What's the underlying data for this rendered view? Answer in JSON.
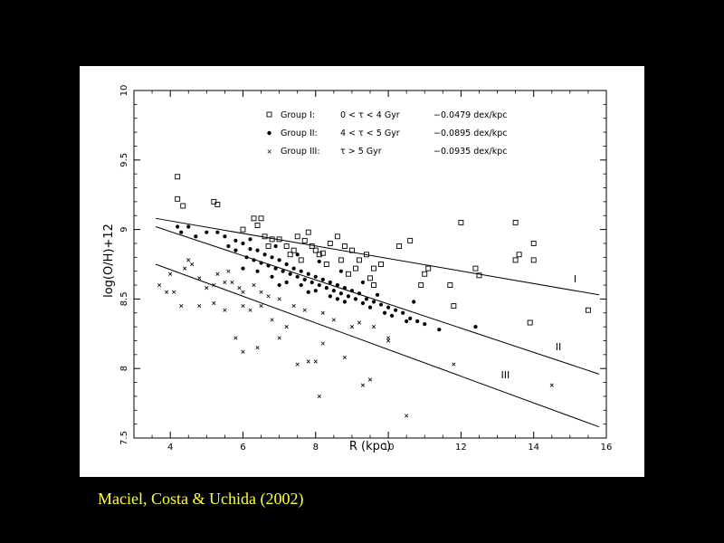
{
  "caption": "Maciel, Costa & Uchida (2002)",
  "colors": {
    "background": "#000000",
    "panel": "#ffffff",
    "ink": "#000000",
    "caption": "#ffff33"
  },
  "chart_data": {
    "type": "scatter",
    "xlabel": "R (kpc)",
    "ylabel": "log(O/H)+12",
    "xlim": [
      3,
      16
    ],
    "ylim": [
      7.5,
      10
    ],
    "xticks": [
      4,
      6,
      8,
      10,
      12,
      14,
      16
    ],
    "yticks": [
      7.5,
      8,
      8.5,
      9,
      9.5,
      10
    ],
    "xtick_labels": [
      "4",
      "6",
      "8",
      "10",
      "12",
      "14",
      "16"
    ],
    "ytick_labels": [
      "7.5",
      "8",
      "8.5",
      "9",
      "9.5",
      "10"
    ],
    "legend_position": "top",
    "legend": [
      {
        "marker": "square",
        "label": "Group I:",
        "age": "0 < τ < 4 Gyr",
        "gradient": "−0.0479 dex/kpc"
      },
      {
        "marker": "dot",
        "label": "Group II:",
        "age": "4 < τ < 5 Gyr",
        "gradient": "−0.0895 dex/kpc"
      },
      {
        "marker": "cross",
        "label": "Group III:",
        "age": "τ > 5 Gyr",
        "gradient": "−0.0935 dex/kpc"
      }
    ],
    "fit_lines": [
      {
        "label": "I",
        "x": [
          3.6,
          15.8
        ],
        "y": [
          9.08,
          8.53
        ],
        "label_x": 15.1,
        "label_y": 8.62
      },
      {
        "label": "II",
        "x": [
          3.6,
          15.8
        ],
        "y": [
          9.02,
          7.96
        ],
        "label_x": 14.6,
        "label_y": 8.13
      },
      {
        "label": "III",
        "x": [
          3.6,
          15.8
        ],
        "y": [
          8.75,
          7.58
        ],
        "label_x": 13.1,
        "label_y": 7.93
      }
    ],
    "series": [
      {
        "name": "Group I",
        "marker": "square",
        "points": [
          [
            4.2,
            9.38
          ],
          [
            4.2,
            9.22
          ],
          [
            4.35,
            9.17
          ],
          [
            5.2,
            9.2
          ],
          [
            5.3,
            9.18
          ],
          [
            6.0,
            9.0
          ],
          [
            6.3,
            9.08
          ],
          [
            6.5,
            9.08
          ],
          [
            6.4,
            9.03
          ],
          [
            6.6,
            8.95
          ],
          [
            6.8,
            8.93
          ],
          [
            7.0,
            8.93
          ],
          [
            7.2,
            8.88
          ],
          [
            7.4,
            8.85
          ],
          [
            7.5,
            8.95
          ],
          [
            7.7,
            8.92
          ],
          [
            7.8,
            8.98
          ],
          [
            7.9,
            8.88
          ],
          [
            8.0,
            8.85
          ],
          [
            8.1,
            8.82
          ],
          [
            8.2,
            8.83
          ],
          [
            8.4,
            8.9
          ],
          [
            8.6,
            8.95
          ],
          [
            8.8,
            8.88
          ],
          [
            9.0,
            8.85
          ],
          [
            9.2,
            8.78
          ],
          [
            9.4,
            8.82
          ],
          [
            9.6,
            8.72
          ],
          [
            9.8,
            8.75
          ],
          [
            10.3,
            8.88
          ],
          [
            10.6,
            8.92
          ],
          [
            10.9,
            8.6
          ],
          [
            11.1,
            8.72
          ],
          [
            11.0,
            8.68
          ],
          [
            11.7,
            8.6
          ],
          [
            11.8,
            8.45
          ],
          [
            12.0,
            9.05
          ],
          [
            12.4,
            8.72
          ],
          [
            12.5,
            8.67
          ],
          [
            13.5,
            9.05
          ],
          [
            13.6,
            8.82
          ],
          [
            13.5,
            8.78
          ],
          [
            14.0,
            8.9
          ],
          [
            14.0,
            8.78
          ],
          [
            15.5,
            8.42
          ],
          [
            13.9,
            8.33
          ],
          [
            6.7,
            8.88
          ],
          [
            7.3,
            8.82
          ],
          [
            8.3,
            8.75
          ],
          [
            8.7,
            8.78
          ],
          [
            9.1,
            8.72
          ],
          [
            9.5,
            8.65
          ],
          [
            8.9,
            8.68
          ],
          [
            9.6,
            8.6
          ],
          [
            7.6,
            8.78
          ]
        ]
      },
      {
        "name": "Group II",
        "marker": "dot",
        "points": [
          [
            4.2,
            9.02
          ],
          [
            4.5,
            9.02
          ],
          [
            4.3,
            8.98
          ],
          [
            4.7,
            8.95
          ],
          [
            5.0,
            8.98
          ],
          [
            5.3,
            8.98
          ],
          [
            5.5,
            8.95
          ],
          [
            5.8,
            8.92
          ],
          [
            6.0,
            8.9
          ],
          [
            6.2,
            8.86
          ],
          [
            6.4,
            8.85
          ],
          [
            6.6,
            8.82
          ],
          [
            6.8,
            8.8
          ],
          [
            7.0,
            8.78
          ],
          [
            7.2,
            8.75
          ],
          [
            7.4,
            8.72
          ],
          [
            7.6,
            8.7
          ],
          [
            7.8,
            8.68
          ],
          [
            8.0,
            8.66
          ],
          [
            8.2,
            8.64
          ],
          [
            8.4,
            8.62
          ],
          [
            8.6,
            8.6
          ],
          [
            8.8,
            8.58
          ],
          [
            9.0,
            8.56
          ],
          [
            9.2,
            8.54
          ],
          [
            9.4,
            8.5
          ],
          [
            9.6,
            8.48
          ],
          [
            9.8,
            8.46
          ],
          [
            10.0,
            8.44
          ],
          [
            10.2,
            8.42
          ],
          [
            10.4,
            8.4
          ],
          [
            10.6,
            8.36
          ],
          [
            10.8,
            8.34
          ],
          [
            11.0,
            8.32
          ],
          [
            11.4,
            8.28
          ],
          [
            12.4,
            8.3
          ],
          [
            5.8,
            8.85
          ],
          [
            6.1,
            8.8
          ],
          [
            6.3,
            8.78
          ],
          [
            6.5,
            8.76
          ],
          [
            6.7,
            8.74
          ],
          [
            6.9,
            8.72
          ],
          [
            7.1,
            8.7
          ],
          [
            7.3,
            8.68
          ],
          [
            7.5,
            8.66
          ],
          [
            7.7,
            8.64
          ],
          [
            7.9,
            8.62
          ],
          [
            8.1,
            8.6
          ],
          [
            8.3,
            8.58
          ],
          [
            8.5,
            8.56
          ],
          [
            8.7,
            8.54
          ],
          [
            8.9,
            8.52
          ],
          [
            9.1,
            8.5
          ],
          [
            9.3,
            8.47
          ],
          [
            9.5,
            8.44
          ],
          [
            9.9,
            8.4
          ],
          [
            10.1,
            8.38
          ],
          [
            10.5,
            8.34
          ],
          [
            6.0,
            8.72
          ],
          [
            6.4,
            8.7
          ],
          [
            6.8,
            8.66
          ],
          [
            7.2,
            8.62
          ],
          [
            7.6,
            8.6
          ],
          [
            8.0,
            8.56
          ],
          [
            8.4,
            8.52
          ],
          [
            8.8,
            8.48
          ],
          [
            6.2,
            8.93
          ],
          [
            6.9,
            8.88
          ],
          [
            7.5,
            8.82
          ],
          [
            8.1,
            8.77
          ],
          [
            8.7,
            8.7
          ],
          [
            9.3,
            8.62
          ],
          [
            10.7,
            8.48
          ],
          [
            5.6,
            8.88
          ],
          [
            7.0,
            8.6
          ],
          [
            7.8,
            8.55
          ],
          [
            8.6,
            8.5
          ],
          [
            9.7,
            8.53
          ]
        ]
      },
      {
        "name": "Group III",
        "marker": "cross",
        "points": [
          [
            3.7,
            8.6
          ],
          [
            3.9,
            8.55
          ],
          [
            4.1,
            8.55
          ],
          [
            4.0,
            8.68
          ],
          [
            4.4,
            8.72
          ],
          [
            4.6,
            8.75
          ],
          [
            4.5,
            8.78
          ],
          [
            4.8,
            8.65
          ],
          [
            5.0,
            8.58
          ],
          [
            5.2,
            8.6
          ],
          [
            5.3,
            8.68
          ],
          [
            5.5,
            8.62
          ],
          [
            5.7,
            8.62
          ],
          [
            5.9,
            8.58
          ],
          [
            6.0,
            8.55
          ],
          [
            6.3,
            8.6
          ],
          [
            6.5,
            8.55
          ],
          [
            6.7,
            8.52
          ],
          [
            4.8,
            8.45
          ],
          [
            5.2,
            8.47
          ],
          [
            5.5,
            8.42
          ],
          [
            6.0,
            8.45
          ],
          [
            6.2,
            8.42
          ],
          [
            6.5,
            8.45
          ],
          [
            7.0,
            8.5
          ],
          [
            7.4,
            8.45
          ],
          [
            7.7,
            8.42
          ],
          [
            8.2,
            8.4
          ],
          [
            8.5,
            8.35
          ],
          [
            9.0,
            8.3
          ],
          [
            9.2,
            8.33
          ],
          [
            9.6,
            8.3
          ],
          [
            10.0,
            8.22
          ],
          [
            10.0,
            8.2
          ],
          [
            5.8,
            8.22
          ],
          [
            6.0,
            8.12
          ],
          [
            6.4,
            8.15
          ],
          [
            7.0,
            8.22
          ],
          [
            7.5,
            8.03
          ],
          [
            7.8,
            8.05
          ],
          [
            8.0,
            8.05
          ],
          [
            8.2,
            8.18
          ],
          [
            8.8,
            8.08
          ],
          [
            9.3,
            7.88
          ],
          [
            9.5,
            7.92
          ],
          [
            8.1,
            7.8
          ],
          [
            10.5,
            7.66
          ],
          [
            11.8,
            8.03
          ],
          [
            14.5,
            7.88
          ],
          [
            6.8,
            8.35
          ],
          [
            7.2,
            8.3
          ],
          [
            4.3,
            8.45
          ],
          [
            5.6,
            8.7
          ]
        ]
      }
    ]
  }
}
